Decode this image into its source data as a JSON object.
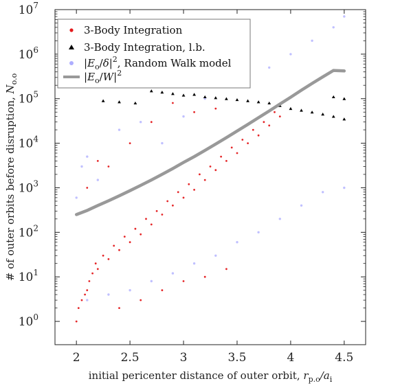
{
  "chart_data": {
    "type": "scatter",
    "xlabel": {
      "text": "initial pericenter distance of outer orbit, ",
      "math": "r",
      "math_sub": "p.o",
      "math_mid": "/a",
      "math_sub2": "i"
    },
    "ylabel": {
      "text": "# of outer orbits before disruption, ",
      "math": "N",
      "math_sub": "o.o"
    },
    "xlim": [
      1.8,
      4.7
    ],
    "ylim": [
      0.3,
      10000000
    ],
    "yscale": "log",
    "grid": false,
    "legend_position": "top-left",
    "x_ticks": [
      {
        "value": 2,
        "label": "2"
      },
      {
        "value": 2.5,
        "label": "2.5"
      },
      {
        "value": 3,
        "label": "3"
      },
      {
        "value": 3.5,
        "label": "3.5"
      },
      {
        "value": 4,
        "label": "4"
      },
      {
        "value": 4.5,
        "label": "4.5"
      }
    ],
    "y_ticks": [
      {
        "value": 1,
        "exp": "0"
      },
      {
        "value": 10,
        "exp": "1"
      },
      {
        "value": 100,
        "exp": "2"
      },
      {
        "value": 1000,
        "exp": "3"
      },
      {
        "value": 10000,
        "exp": "4"
      },
      {
        "value": 100000,
        "exp": "5"
      },
      {
        "value": 1000000,
        "exp": "6"
      },
      {
        "value": 10000000,
        "exp": "7"
      }
    ],
    "y_tick_base": "10",
    "legend": [
      {
        "label": "3-Body Integration",
        "marker": "red-dot"
      },
      {
        "label": "3-Body Integration, l.b.",
        "marker": "black-triangle"
      },
      {
        "label": "|E_o/δ|², Random Walk model",
        "marker": "blue-dot",
        "parts": [
          "|",
          "E",
          "o",
          "/",
          "δ",
          "|",
          "2",
          ", Random Walk model"
        ]
      },
      {
        "label": "|E_o/W|²",
        "marker": "gray-line",
        "parts": [
          "|",
          "E",
          "o",
          "/",
          "W",
          "|",
          "2",
          ""
        ]
      }
    ],
    "series": [
      {
        "name": "3-Body Integration",
        "color": "#e41a1c",
        "marker": "dot",
        "points": [
          [
            2.0,
            1
          ],
          [
            2.02,
            2
          ],
          [
            2.05,
            3
          ],
          [
            2.08,
            4
          ],
          [
            2.1,
            5
          ],
          [
            2.12,
            8
          ],
          [
            2.15,
            12
          ],
          [
            2.18,
            20
          ],
          [
            2.2,
            15
          ],
          [
            2.25,
            30
          ],
          [
            2.3,
            25
          ],
          [
            2.35,
            50
          ],
          [
            2.4,
            40
          ],
          [
            2.45,
            80
          ],
          [
            2.5,
            60
          ],
          [
            2.55,
            120
          ],
          [
            2.6,
            90
          ],
          [
            2.65,
            200
          ],
          [
            2.7,
            150
          ],
          [
            2.75,
            300
          ],
          [
            2.8,
            250
          ],
          [
            2.85,
            500
          ],
          [
            2.9,
            400
          ],
          [
            2.95,
            800
          ],
          [
            3.0,
            600
          ],
          [
            3.05,
            1200
          ],
          [
            3.1,
            900
          ],
          [
            3.15,
            2000
          ],
          [
            3.2,
            1500
          ],
          [
            3.25,
            3000
          ],
          [
            3.3,
            2500
          ],
          [
            3.35,
            5000
          ],
          [
            3.4,
            4000
          ],
          [
            3.45,
            8000
          ],
          [
            3.5,
            6000
          ],
          [
            3.55,
            12000
          ],
          [
            3.6,
            10000
          ],
          [
            3.65,
            20000
          ],
          [
            3.7,
            15000
          ],
          [
            3.75,
            30000
          ],
          [
            3.8,
            25000
          ],
          [
            3.85,
            50000
          ],
          [
            3.9,
            40000
          ],
          [
            2.3,
            3000
          ],
          [
            2.5,
            10000
          ],
          [
            2.7,
            30000
          ],
          [
            2.9,
            80000
          ],
          [
            3.1,
            50000
          ],
          [
            3.3,
            60000
          ],
          [
            2.1,
            1000
          ],
          [
            2.2,
            4000
          ],
          [
            2.4,
            2
          ],
          [
            2.6,
            3
          ],
          [
            2.8,
            5
          ],
          [
            3.0,
            8
          ],
          [
            3.2,
            10
          ],
          [
            3.4,
            15
          ]
        ]
      },
      {
        "name": "3-Body Integration, l.b.",
        "color": "#000000",
        "marker": "triangle",
        "points": [
          [
            2.25,
            90000
          ],
          [
            2.4,
            85000
          ],
          [
            2.55,
            80000
          ],
          [
            2.7,
            150000
          ],
          [
            2.8,
            140000
          ],
          [
            2.9,
            130000
          ],
          [
            3.0,
            120000
          ],
          [
            3.1,
            125000
          ],
          [
            3.2,
            110000
          ],
          [
            3.3,
            105000
          ],
          [
            3.4,
            100000
          ],
          [
            3.5,
            95000
          ],
          [
            3.6,
            90000
          ],
          [
            3.7,
            85000
          ],
          [
            3.8,
            80000
          ],
          [
            3.9,
            70000
          ],
          [
            4.0,
            60000
          ],
          [
            4.1,
            55000
          ],
          [
            4.2,
            50000
          ],
          [
            4.3,
            45000
          ],
          [
            4.4,
            40000
          ],
          [
            4.5,
            35000
          ],
          [
            4.5,
            100000
          ],
          [
            4.4,
            110000
          ]
        ]
      },
      {
        "name": "|E_o/δ|², Random Walk model",
        "color": "#8c8cff",
        "marker": "dot",
        "points": [
          [
            2.0,
            600
          ],
          [
            2.05,
            3000
          ],
          [
            2.1,
            5000
          ],
          [
            2.2,
            1500
          ],
          [
            2.4,
            20000
          ],
          [
            2.6,
            30000
          ],
          [
            2.8,
            10000
          ],
          [
            3.0,
            40000
          ],
          [
            3.2,
            100000
          ],
          [
            3.4,
            300000
          ],
          [
            3.6,
            800000
          ],
          [
            3.8,
            500000
          ],
          [
            4.0,
            1000000
          ],
          [
            4.2,
            2000000
          ],
          [
            4.4,
            4000000
          ],
          [
            4.5,
            7000000
          ],
          [
            4.5,
            1000
          ],
          [
            4.3,
            800
          ],
          [
            4.1,
            400
          ],
          [
            3.9,
            200
          ],
          [
            3.7,
            100
          ],
          [
            3.5,
            60
          ],
          [
            3.3,
            30
          ],
          [
            3.1,
            20
          ],
          [
            2.9,
            12
          ],
          [
            2.7,
            8
          ],
          [
            2.5,
            5
          ],
          [
            2.3,
            4
          ],
          [
            2.1,
            3
          ]
        ]
      },
      {
        "name": "|E_o/W|²",
        "color": "#999999",
        "marker": "line",
        "x": [
          2.0,
          2.1,
          2.2,
          2.3,
          2.4,
          2.5,
          2.6,
          2.7,
          2.8,
          2.9,
          3.0,
          3.1,
          3.2,
          3.3,
          3.4,
          3.5,
          3.6,
          3.7,
          3.8,
          3.9,
          4.0,
          4.1,
          4.2,
          4.3,
          4.4,
          4.5
        ],
        "y": [
          250,
          310,
          400,
          510,
          660,
          860,
          1130,
          1500,
          2000,
          2700,
          3700,
          5000,
          6900,
          9600,
          13400,
          18800,
          26500,
          37500,
          53000,
          76000,
          108000,
          155000,
          220000,
          310000,
          430000,
          420000
        ]
      }
    ]
  }
}
